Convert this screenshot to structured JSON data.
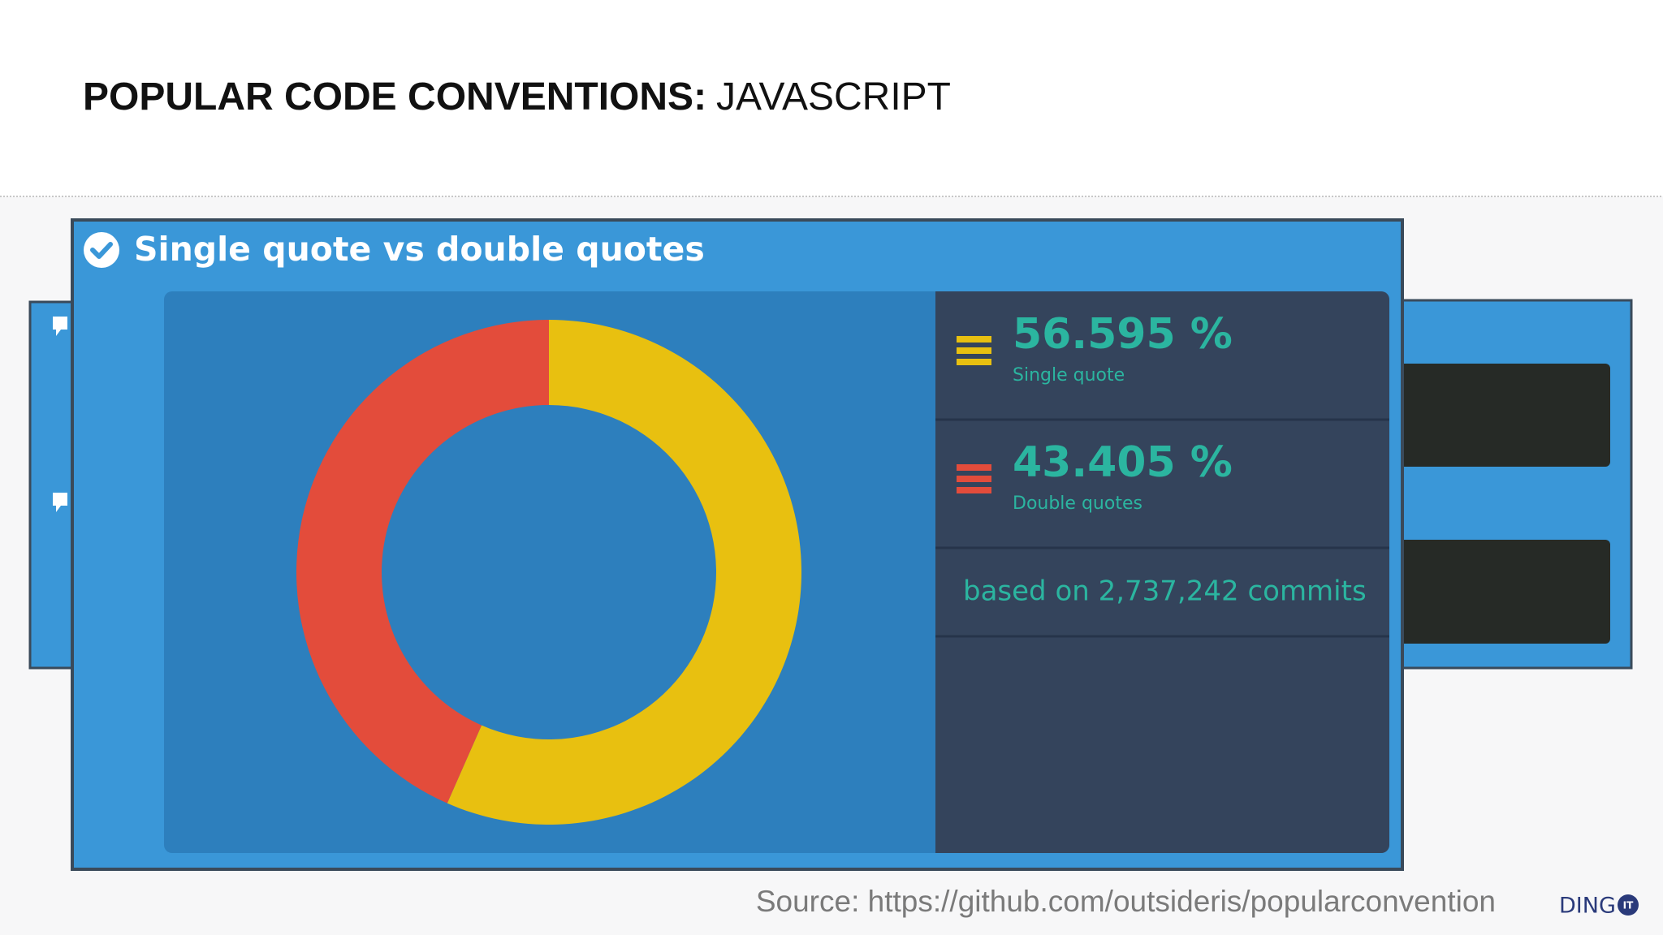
{
  "slide_title": {
    "bold": "POPULAR CODE CONVENTIONS:",
    "regular": "JAVASCRIPT"
  },
  "chart_data": {
    "type": "donut",
    "title": "Single quote vs double quotes",
    "categories": [
      "Single quote",
      "Double quotes"
    ],
    "values": [
      56.595,
      43.405
    ],
    "value_labels": [
      "56.595 %",
      "43.405 %"
    ],
    "colors": [
      "#e8c010",
      "#e34c3b"
    ],
    "note": "based on 2,737,242 commits"
  },
  "source": "Source: https://github.com/outsideris/popularconvention",
  "logo": {
    "text": "DING",
    "badge": "IT"
  }
}
